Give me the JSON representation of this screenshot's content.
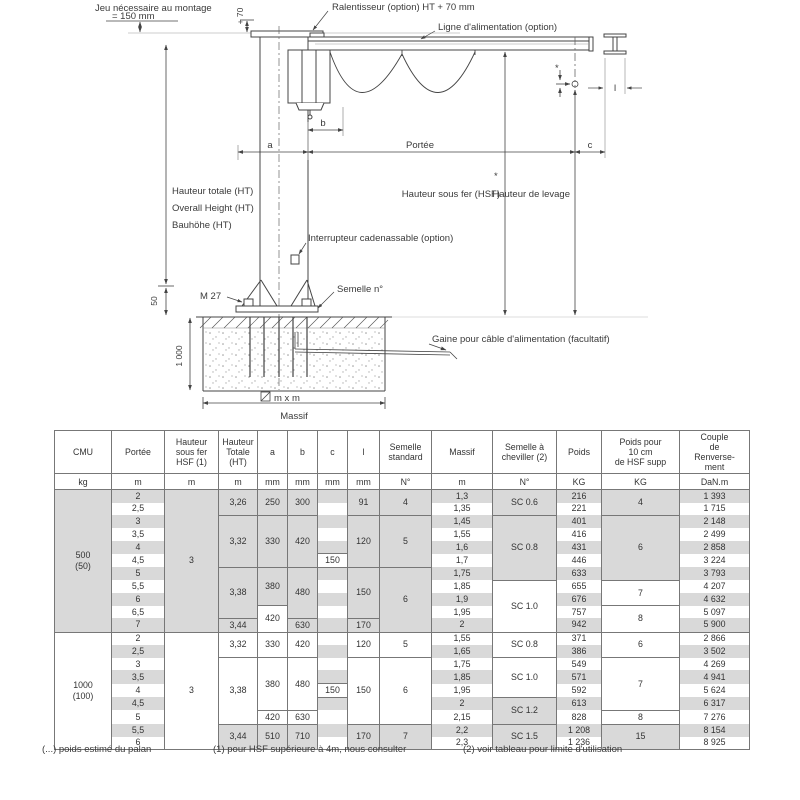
{
  "diagram": {
    "labels": {
      "jeu1": "Jeu nécessaire au montage",
      "jeu2": "= 150 mm",
      "plus70": "+ 70",
      "ralentisseur": "Ralentisseur (option) HT + 70 mm",
      "ligne_alim": "Ligne d'alimentation (option)",
      "ht_fr": "Hauteur totale (HT)",
      "ht_en": "Overall Height (HT)",
      "ht_de": "Bauhöhe (HT)",
      "hsf": "Hauteur sous fer (HSF)",
      "star": "*",
      "levage": "Hauteur de levage",
      "interrupteur": "Interrupteur cadenassable (option)",
      "m27": "M 27",
      "semelle_no": "Semelle n°",
      "d50": "50",
      "d1000": "1 000",
      "gaine": "Gaine pour câble d'alimentation (facultatif)",
      "mxm": "m x m",
      "massif": "Massif",
      "dim_a": "a",
      "dim_b": "b",
      "dim_c": "c",
      "dim_l": "l",
      "portee": "Portée"
    }
  },
  "table": {
    "headers": [
      "CMU",
      "Portée",
      "Hauteur\nsous fer\nHSF (1)",
      "Hauteur\nTotale\n(HT)",
      "a",
      "b",
      "c",
      "l",
      "Semelle\nstandard",
      "Massif",
      "Semelle à\ncheviller (2)",
      "Poids",
      "Poids pour\n10 cm\nde HSF supp",
      "Couple\nde\nRenverse-\nment"
    ],
    "units": [
      "kg",
      "m",
      "m",
      "m",
      "mm",
      "mm",
      "mm",
      "mm",
      "N°",
      "m",
      "N°",
      "KG",
      "KG",
      "DaN.m"
    ],
    "groups": [
      {
        "cmu": "500\n(50)",
        "rows": [
          [
            "2",
            [
              "3",
              11,
              "p"
            ],
            [
              "3,26",
              2
            ],
            [
              "250",
              2
            ],
            [
              "300",
              2
            ],
            "",
            [
              "91",
              2
            ],
            [
              "4",
              2
            ],
            "1,3",
            [
              "SC 0.6",
              2
            ],
            "216",
            [
              "4",
              2
            ],
            "1 393"
          ],
          [
            "2,5",
            "^",
            "^",
            "^",
            "^",
            "",
            "^",
            "^",
            "1,35",
            "^",
            "221",
            "^",
            "1 715"
          ],
          [
            "3",
            "^",
            [
              "3,32",
              4
            ],
            [
              "330",
              4
            ],
            [
              "420",
              4
            ],
            "",
            [
              "120",
              4
            ],
            [
              "5",
              4
            ],
            "1,45",
            [
              "SC 0.8",
              5
            ],
            "401",
            [
              "6",
              5
            ],
            "2 148"
          ],
          [
            "3,5",
            "^",
            "^",
            "^",
            "^",
            "",
            "^",
            "^",
            "1,55",
            "^",
            "416",
            "^",
            "2 499"
          ],
          [
            "4",
            "^",
            "^",
            "^",
            "^",
            "",
            "^",
            "^",
            "1,6",
            "^",
            "431",
            "^",
            "2 858"
          ],
          [
            "4,5",
            "^",
            "^",
            "^",
            "^",
            [
              "150",
              1
            ],
            "^",
            "^",
            "1,7",
            "^",
            "446",
            "^",
            "3 224"
          ],
          [
            "5",
            "^",
            [
              "3,38",
              4
            ],
            [
              "380",
              3
            ],
            [
              "480",
              4
            ],
            "",
            [
              "150",
              4
            ],
            [
              "6",
              5
            ],
            "1,75",
            "^",
            "633",
            "^",
            "3 793"
          ],
          [
            "5,5",
            "^",
            "^",
            "^",
            "^",
            "",
            "^",
            "^",
            "1,85",
            [
              "SC 1.0",
              4
            ],
            "655",
            [
              "7",
              2
            ],
            "4 207"
          ],
          [
            "6",
            "^",
            "^",
            "^",
            "^",
            "",
            "^",
            "^",
            "1,9",
            "^",
            "676",
            "^",
            "4 632"
          ],
          [
            "6,5",
            "^",
            "^",
            [
              "420",
              2
            ],
            "^",
            "",
            "^",
            "^",
            "1,95",
            "^",
            "757",
            [
              "8",
              2
            ],
            "5 097"
          ],
          [
            "7",
            "^",
            [
              "3,44",
              1
            ],
            "^",
            [
              "630",
              1
            ],
            "",
            [
              "170",
              1
            ],
            "^",
            "2",
            "^",
            "942",
            "^",
            "5 900"
          ]
        ]
      },
      {
        "cmu": "1000\n(100)",
        "rows": [
          [
            "2",
            [
              "3",
              9,
              "p"
            ],
            [
              "3,32",
              2
            ],
            [
              "330",
              2
            ],
            [
              "420",
              2
            ],
            "",
            [
              "120",
              2
            ],
            [
              "5",
              2
            ],
            "1,55",
            [
              "SC 0.8",
              2
            ],
            "371",
            [
              "6",
              2
            ],
            "2 866"
          ],
          [
            "2,5",
            "^",
            "^",
            "^",
            "^",
            "",
            "^",
            "^",
            "1,65",
            "^",
            "386",
            "^",
            "3 502"
          ],
          [
            "3",
            "^",
            [
              "3,38",
              5
            ],
            [
              "380",
              4
            ],
            [
              "480",
              4
            ],
            "",
            [
              "150",
              5
            ],
            [
              "6",
              5
            ],
            "1,75",
            [
              "SC 1.0",
              3
            ],
            "549",
            [
              "7",
              4
            ],
            "4 269"
          ],
          [
            "3,5",
            "^",
            "^",
            "^",
            "^",
            "",
            "^",
            "^",
            "1,85",
            "^",
            "571",
            "^",
            "4 941"
          ],
          [
            "4",
            "^",
            "^",
            "^",
            "^",
            [
              "150",
              1
            ],
            "^",
            "^",
            "1,95",
            "^",
            "592",
            "^",
            "5 624"
          ],
          [
            "4,5",
            "^",
            "^",
            "^",
            "^",
            "",
            "^",
            "^",
            "2",
            [
              "SC 1.2",
              2
            ],
            "613",
            "^",
            "6 317"
          ],
          [
            "5",
            "^",
            "^",
            [
              "420",
              1
            ],
            [
              "630",
              1
            ],
            "",
            "^",
            "^",
            "2,15",
            "^",
            "828",
            [
              "8",
              1
            ],
            "7 276"
          ],
          [
            "5,5",
            "^",
            [
              "3,44",
              2
            ],
            [
              "510",
              2
            ],
            [
              "710",
              2
            ],
            "",
            [
              "170",
              2
            ],
            [
              "7",
              2
            ],
            "2,2",
            [
              "SC 1.5",
              2
            ],
            "1 208",
            [
              "15",
              2
            ],
            "8 154"
          ],
          [
            "6",
            "^",
            "^",
            "^",
            "^",
            "",
            "^",
            "^",
            "2,3",
            "^",
            "1 236",
            "^",
            "8 925"
          ]
        ]
      }
    ]
  },
  "footnotes": [
    "(...) poids estimé du palan",
    "(1) pour HSF supérieure à 4m, nous consulter",
    "(2) voir tableau pour limite d'utilisation"
  ]
}
